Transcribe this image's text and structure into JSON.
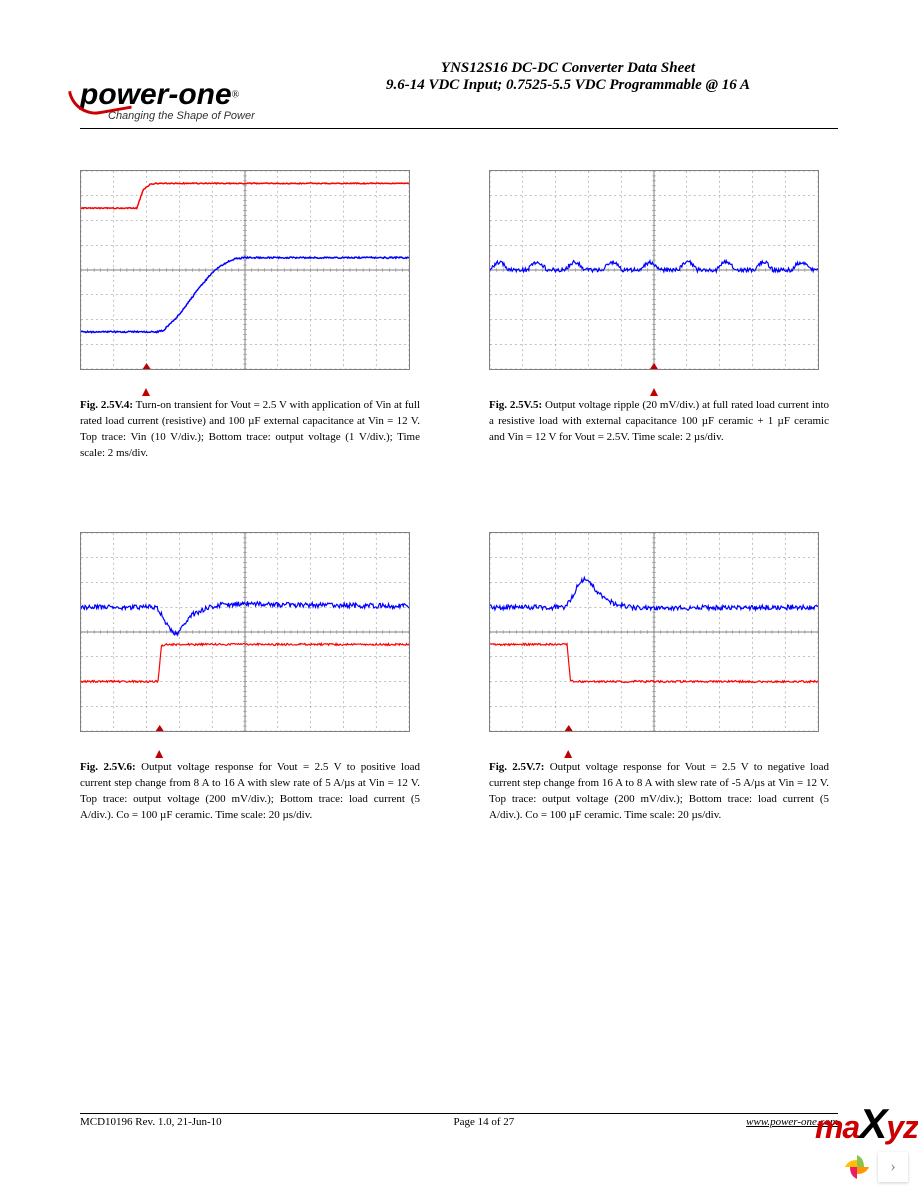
{
  "header": {
    "title1": "YNS12S16 DC-DC Converter Data Sheet",
    "title2": "9.6-14 VDC Input; 0.7525-5.5 VDC Programmable @ 16 A",
    "logo_main": "power-one",
    "logo_reg": "®",
    "logo_tagline": "Changing the Shape of Power"
  },
  "figures": [
    {
      "id": "fig-2-5v-4",
      "type": "scope",
      "grid": {
        "cols": 10,
        "rows": 8,
        "major_color": "#808080",
        "minor_color": "#c0c0c0"
      },
      "background_color": "#ffffff",
      "traces": [
        {
          "name": "vin-trace",
          "color": "#ff0000",
          "width": 1.5,
          "points": [
            [
              0,
              1.5
            ],
            [
              1.7,
              1.5
            ],
            [
              1.9,
              0.75
            ],
            [
              2.1,
              0.55
            ],
            [
              2.3,
              0.5
            ],
            [
              10,
              0.5
            ]
          ],
          "noise_amp": 0.02
        },
        {
          "name": "vout-trace",
          "color": "#0000ff",
          "width": 1.5,
          "points": [
            [
              0,
              6.5
            ],
            [
              2.3,
              6.5
            ],
            [
              2.5,
              6.45
            ],
            [
              3.0,
              5.8
            ],
            [
              3.5,
              4.9
            ],
            [
              4.0,
              4.1
            ],
            [
              4.3,
              3.8
            ],
            [
              4.5,
              3.65
            ],
            [
              4.7,
              3.55
            ],
            [
              5.0,
              3.5
            ],
            [
              10,
              3.5
            ]
          ],
          "noise_amp": 0.03
        }
      ],
      "trigger_x": 2.0,
      "caption_label": "Fig. 2.5V.4:",
      "caption_text": " Turn-on transient for Vout = 2.5 V with application of Vin at full rated load current (resistive) and 100 µF external capacitance at Vin = 12 V. Top trace: Vin (10 V/div.); Bottom trace: output voltage (1 V/div.); Time scale: 2 ms/div."
    },
    {
      "id": "fig-2-5v-5",
      "type": "scope",
      "grid": {
        "cols": 10,
        "rows": 8,
        "major_color": "#808080",
        "minor_color": "#c0c0c0"
      },
      "background_color": "#ffffff",
      "traces": [
        {
          "name": "ripple-trace",
          "color": "#0000ff",
          "width": 1.2,
          "ripple": {
            "baseline": 4.0,
            "amp": 0.35,
            "period": 1.15,
            "noise_amp": 0.08
          }
        }
      ],
      "trigger_x": 5.0,
      "caption_label": "Fig. 2.5V.5:",
      "caption_text": "  Output voltage ripple (20 mV/div.) at full rated load current into a resistive load with external capacitance 100 µF ceramic + 1 µF ceramic and Vin = 12 V for Vout = 2.5V. Time scale: 2 µs/div."
    },
    {
      "id": "fig-2-5v-6",
      "type": "scope",
      "grid": {
        "cols": 10,
        "rows": 8,
        "major_color": "#808080",
        "minor_color": "#c0c0c0"
      },
      "background_color": "#ffffff",
      "traces": [
        {
          "name": "vout-trace",
          "color": "#0000ff",
          "width": 1.2,
          "points": [
            [
              0,
              3.0
            ],
            [
              2.3,
              3.0
            ],
            [
              2.5,
              3.4
            ],
            [
              2.7,
              3.9
            ],
            [
              2.9,
              4.1
            ],
            [
              3.1,
              3.8
            ],
            [
              3.4,
              3.3
            ],
            [
              3.8,
              3.05
            ],
            [
              4.3,
              2.9
            ],
            [
              5.0,
              2.85
            ],
            [
              6.0,
              2.9
            ],
            [
              10,
              2.95
            ]
          ],
          "noise_amp": 0.1
        },
        {
          "name": "iload-trace",
          "color": "#ff0000",
          "width": 1.2,
          "points": [
            [
              0,
              6.0
            ],
            [
              2.35,
              6.0
            ],
            [
              2.45,
              4.55
            ],
            [
              2.6,
              4.5
            ],
            [
              10,
              4.5
            ]
          ],
          "noise_amp": 0.04
        }
      ],
      "trigger_x": 2.4,
      "caption_label": "Fig. 2.5V.6:",
      "caption_text": " Output voltage response for Vout = 2.5 V to positive load current step change from 8 A to 16 A with slew rate of 5 A/µs at Vin = 12 V. Top trace: output voltage (200 mV/div.); Bottom trace: load current (5 A/div.). Co = 100 µF ceramic. Time scale: 20 µs/div."
    },
    {
      "id": "fig-2-5v-7",
      "type": "scope",
      "grid": {
        "cols": 10,
        "rows": 8,
        "major_color": "#808080",
        "minor_color": "#c0c0c0"
      },
      "background_color": "#ffffff",
      "traces": [
        {
          "name": "vout-trace",
          "color": "#0000ff",
          "width": 1.2,
          "points": [
            [
              0,
              3.0
            ],
            [
              2.3,
              3.0
            ],
            [
              2.5,
              2.6
            ],
            [
              2.7,
              2.05
            ],
            [
              2.9,
              1.85
            ],
            [
              3.1,
              2.1
            ],
            [
              3.4,
              2.55
            ],
            [
              3.8,
              2.85
            ],
            [
              4.3,
              3.0
            ],
            [
              5.0,
              3.05
            ],
            [
              6.0,
              3.02
            ],
            [
              10,
              3.0
            ]
          ],
          "noise_amp": 0.1
        },
        {
          "name": "iload-trace",
          "color": "#ff0000",
          "width": 1.2,
          "points": [
            [
              0,
              4.5
            ],
            [
              2.35,
              4.5
            ],
            [
              2.45,
              5.95
            ],
            [
              2.6,
              6.0
            ],
            [
              10,
              6.0
            ]
          ],
          "noise_amp": 0.04
        }
      ],
      "trigger_x": 2.4,
      "caption_label": "Fig. 2.5V.7:",
      "caption_text": " Output voltage response for Vout = 2.5 V to negative load current step change from 16 A to 8 A with slew rate of -5 A/µs at Vin = 12 V. Top trace: output voltage (200 mV/div.); Bottom trace: load current (5 A/div.). Co = 100 µF ceramic. Time scale: 20 µs/div."
    }
  ],
  "footer": {
    "left": "MCD10196 Rev. 1.0, 21-Jun-10",
    "center": "Page 14 of 27",
    "right": "www.power-one.com"
  },
  "watermark": {
    "text_m": "ma",
    "text_x": "X",
    "text_yz": "yz"
  }
}
